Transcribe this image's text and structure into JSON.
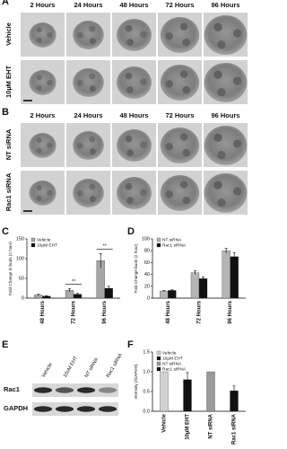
{
  "panel_a": {
    "letter": "A",
    "columns": [
      "2 Hours",
      "24 Hours",
      "48 Hours",
      "72 Hours",
      "96 Hours"
    ],
    "rows": [
      "Vehicle",
      "10µM EHT"
    ]
  },
  "panel_b": {
    "letter": "B",
    "columns": [
      "2 Hours",
      "24 Hours",
      "48 Hours",
      "72 Hours",
      "96 Hours"
    ],
    "rows": [
      "NT siRNA",
      "Rac1 siRNA"
    ]
  },
  "panel_e": {
    "letter": "E",
    "lanes": [
      "Vehicle",
      "10uM EHT",
      "NT siRNA",
      "Rac1 siRNA"
    ],
    "rows": [
      "Rac1",
      "GAPDH"
    ]
  },
  "chart_data": [
    {
      "type": "bar",
      "letter": "C",
      "y_label": "Fold Change in buds (2 hour)",
      "categories": [
        "48 Hours",
        "72 Hours",
        "96 Hours"
      ],
      "series": [
        {
          "name": "Vehicle",
          "color": "#a6a6a6",
          "values": [
            8,
            20,
            95
          ],
          "errors": [
            2,
            4,
            18
          ]
        },
        {
          "name": "10µM EHT",
          "color": "#111111",
          "values": [
            5,
            10,
            25
          ],
          "errors": [
            1,
            2,
            5
          ]
        }
      ],
      "ylim": [
        0,
        150
      ],
      "yticks": [
        0,
        50,
        100,
        150
      ],
      "legend": "top-left",
      "annotations": [
        "**",
        "**"
      ]
    },
    {
      "type": "bar",
      "letter": "D",
      "y_label": "Fold Change buds (2 hour)",
      "categories": [
        "48 Hours",
        "72 Hours",
        "96 Hours"
      ],
      "series": [
        {
          "name": "NT siRNA",
          "color": "#b5b5b5",
          "values": [
            12,
            43,
            80
          ],
          "errors": [
            1,
            3,
            4
          ]
        },
        {
          "name": "Rac1 siRNA",
          "color": "#111111",
          "values": [
            13,
            33,
            70
          ],
          "errors": [
            1,
            3,
            7
          ]
        }
      ],
      "ylim": [
        0,
        100
      ],
      "yticks": [
        0,
        20,
        40,
        60,
        80,
        100
      ],
      "legend": "top-left"
    },
    {
      "type": "bar",
      "letter": "F",
      "y_label": "Intensity (/GAPDH)",
      "categories": [
        "Vehicle",
        "10µM EHT",
        "NT siRNA",
        "Rac1 siRNA"
      ],
      "series": [
        {
          "name": "Vehicle",
          "color": "#d0d0d0",
          "values": [
            1,
            null,
            null,
            null
          ]
        },
        {
          "name": "10µM EHT",
          "color": "#111111",
          "values": [
            null,
            0.8,
            null,
            null
          ],
          "errors": [
            null,
            0.18,
            null,
            null
          ]
        },
        {
          "name": "NT siRNA",
          "color": "#9a9a9a",
          "values": [
            null,
            null,
            1,
            null
          ]
        },
        {
          "name": "Rac1 siRNA",
          "color": "#111111",
          "values": [
            null,
            null,
            null,
            0.52
          ],
          "errors": [
            null,
            null,
            null,
            0.12
          ]
        }
      ],
      "ylim": [
        0,
        1.5
      ],
      "yticks": [
        {
          "value": 0,
          "label": "0.0"
        },
        0.5,
        {
          "value": 1,
          "label": "1.0"
        },
        1.5
      ],
      "legend": "top-left"
    }
  ]
}
